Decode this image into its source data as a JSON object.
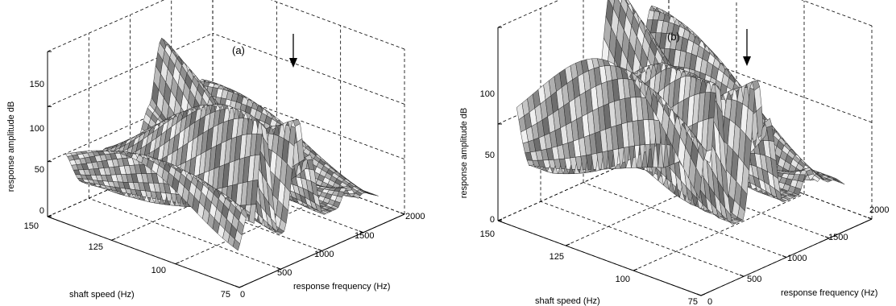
{
  "chart_data": [
    {
      "type": "surface",
      "panel_label": "(a)",
      "xlabel": "response frequency (Hz)",
      "ylabel": "shaft speed (Hz)",
      "zlabel": "response amplitude dB",
      "x_ticks": [
        "0",
        "500",
        "1000",
        "1500",
        "2000"
      ],
      "y_ticks": [
        "75",
        "100",
        "125",
        "150"
      ],
      "z_ticks": [
        "0",
        "50",
        "100",
        "150"
      ],
      "xlim": [
        0,
        2000
      ],
      "ylim": [
        75,
        150
      ],
      "zlim": [
        0,
        150
      ],
      "grid": true,
      "colormap": "grayscale",
      "annotation": "downward arrow marking a resonance peak",
      "ridges": [
        {
          "freq": 150,
          "amp": 60
        },
        {
          "freq": 500,
          "amp": 115
        },
        {
          "freq": 750,
          "amp": 110
        },
        {
          "freq": 1050,
          "amp": 120
        },
        {
          "freq": 1350,
          "amp": 125
        },
        {
          "freq": 1700,
          "amp": 60
        }
      ]
    },
    {
      "type": "surface",
      "panel_label": "(b)",
      "xlabel": "response frequency (Hz)",
      "ylabel": "shaft speed (Hz)",
      "zlabel": "response amplitude dB",
      "x_ticks": [
        "0",
        "500",
        "1000",
        "1500",
        "2000"
      ],
      "y_ticks": [
        "75",
        "100",
        "125",
        "150"
      ],
      "z_ticks": [
        "0",
        "50",
        "100"
      ],
      "xlim": [
        0,
        2000
      ],
      "ylim": [
        75,
        150
      ],
      "zlim": [
        0,
        100
      ],
      "grid": true,
      "colormap": "grayscale",
      "annotation": "downward arrow marking a resonance peak",
      "ridges": [
        {
          "freq": 100,
          "amp": 80
        },
        {
          "freq": 400,
          "amp": 85
        },
        {
          "freq": 700,
          "amp": 80
        },
        {
          "freq": 1000,
          "amp": 95
        },
        {
          "freq": 1300,
          "amp": 100
        },
        {
          "freq": 1600,
          "amp": 60
        }
      ]
    }
  ]
}
